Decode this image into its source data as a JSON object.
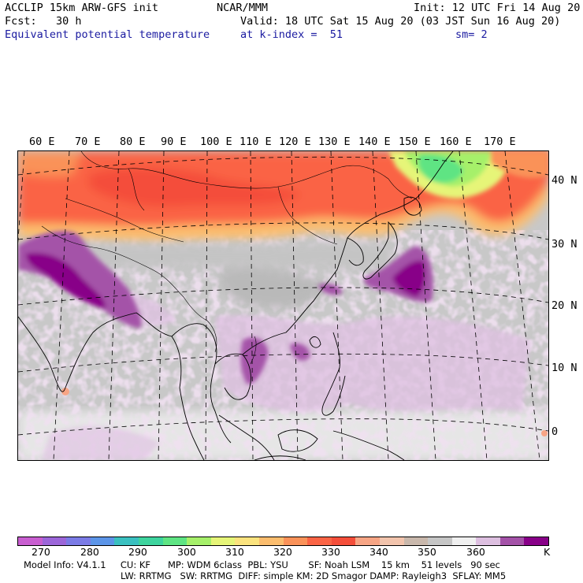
{
  "header": {
    "model": "ACCLIP 15km ARW-GFS init",
    "org": "NCAR/MMM",
    "init": "Init: 12 UTC Fri 14 Aug 20",
    "fcst": "Fcst:   30 h",
    "valid": "Valid: 18 UTC Sat 15 Aug 20 (03 JST Sun 16 Aug 20)",
    "field": "Equivalent potential temperature",
    "level": "at k-index =  51",
    "smooth": "sm= 2"
  },
  "map": {
    "lon_labels": [
      "60 E",
      "70 E",
      "80 E",
      "90 E",
      "100 E",
      "110 E",
      "120 E",
      "130 E",
      "140 E",
      "150 E",
      "160 E",
      "170 E"
    ],
    "lat_labels": [
      "40 N",
      "30 N",
      "20 N",
      "10 N",
      "0"
    ]
  },
  "colorbar": {
    "colors": [
      "#c85ed0",
      "#9c66d9",
      "#7b7be6",
      "#5c95e8",
      "#3ac0c0",
      "#3ed49e",
      "#5ee483",
      "#a6f06a",
      "#e6f578",
      "#fbe37e",
      "#fbbd6e",
      "#fa9259",
      "#fa6445",
      "#f44e3a",
      "#f7a585",
      "#f2c4ad",
      "#c9b8ac",
      "#c6c6c6",
      "#f0f0f0",
      "#ddbfe0",
      "#a452a8",
      "#880088"
    ],
    "labels": [
      "270",
      "280",
      "290",
      "300",
      "310",
      "320",
      "330",
      "340",
      "350",
      "360",
      "K"
    ]
  },
  "footer": {
    "line1": "Model Info: V4.1.1     CU: KF      MP: WDM 6class  PBL: YSU       SF: Noah LSM    15 km    51 levels   90 sec",
    "line2": "LW: RRTMG   SW: RRTMG  DIFF: simple KM: 2D Smagor DAMP: Rayleigh3  SFLAY: MM5"
  }
}
